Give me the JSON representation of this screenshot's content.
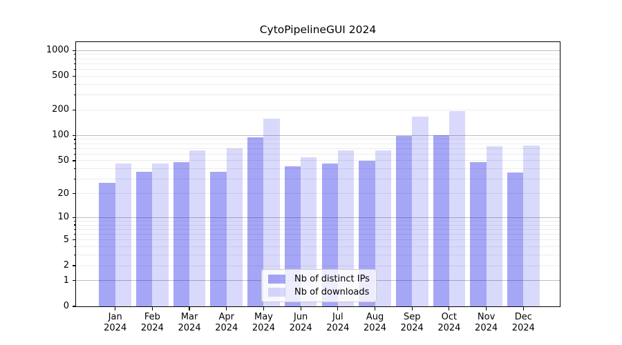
{
  "chart_data": {
    "type": "bar",
    "title": "CytoPipelineGUI 2024",
    "scale": "symlog (position ~ log10(1+value))",
    "grid": true,
    "legend_position": "lower center",
    "categories": [
      "Jan 2024",
      "Feb 2024",
      "Mar 2024",
      "Apr 2024",
      "May 2024",
      "Jun 2024",
      "Jul 2024",
      "Aug 2024",
      "Sep 2024",
      "Oct 2024",
      "Nov 2024",
      "Dec 2024"
    ],
    "month_labels": [
      "Jan",
      "Feb",
      "Mar",
      "Apr",
      "May",
      "Jun",
      "Jul",
      "Aug",
      "Sep",
      "Oct",
      "Nov",
      "Dec"
    ],
    "year_label": "2024",
    "series": [
      {
        "name": "Nb of distinct IPs",
        "color": "rgba(0,0,230,0.35)",
        "values": [
          27,
          37,
          48,
          37,
          96,
          43,
          46,
          50,
          99,
          100,
          48,
          36
        ]
      },
      {
        "name": "Nb of downloads",
        "color": "rgba(0,0,230,0.15)",
        "values": [
          46,
          46,
          66,
          71,
          158,
          55,
          66,
          66,
          167,
          194,
          75,
          76
        ]
      }
    ],
    "yticks": [
      0,
      1,
      2,
      5,
      10,
      20,
      50,
      100,
      200,
      500,
      1000
    ],
    "ylim": [
      0,
      1255
    ],
    "xlabel": "",
    "ylabel": ""
  }
}
